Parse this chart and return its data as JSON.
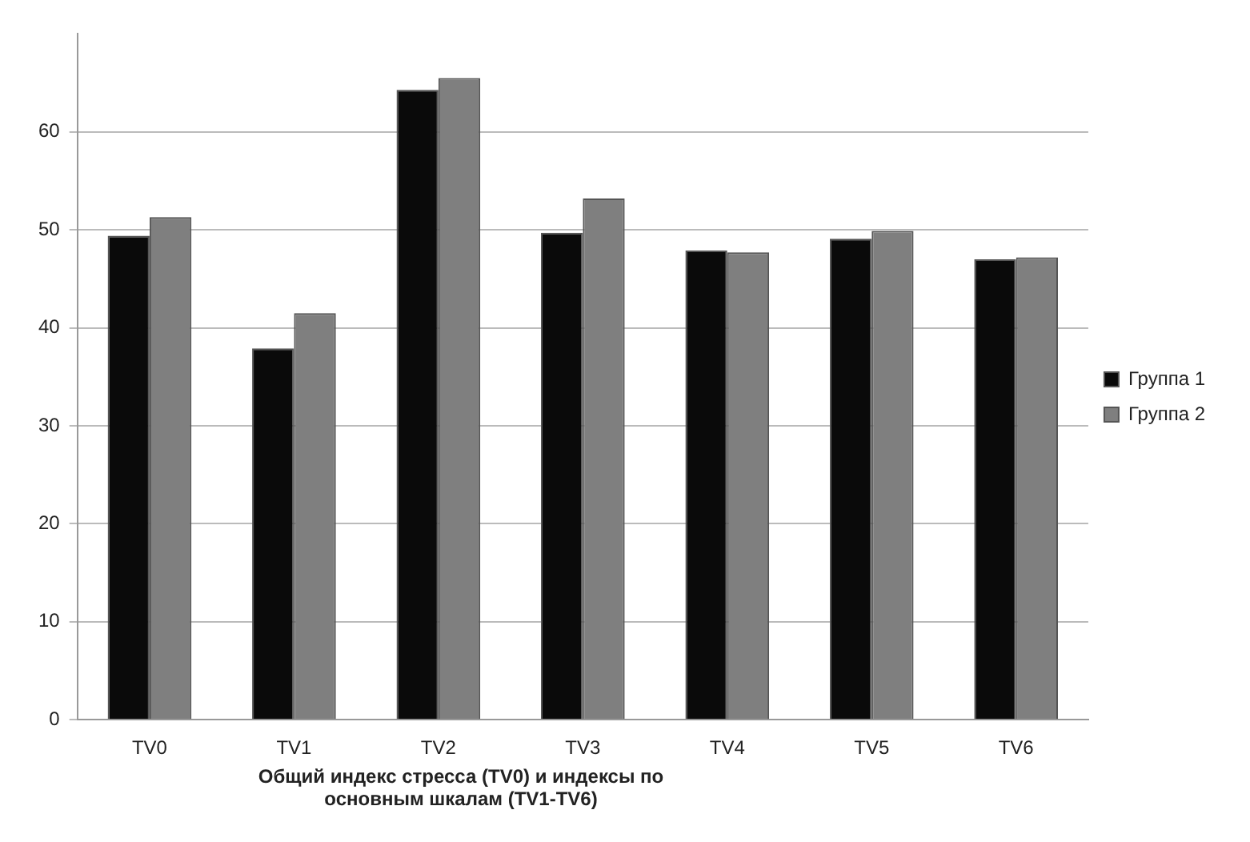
{
  "chart_data": {
    "type": "bar",
    "xlabel": "Общий индекс стресса (TV0) и индексы по основным  шкалам (TV1-TV6)",
    "categories": [
      "TV0",
      "TV1",
      "TV2",
      "TV3",
      "TV4",
      "TV5",
      "TV6"
    ],
    "series": [
      {
        "name": "Группа 1",
        "color": "#0a0a0a",
        "values": [
          49.4,
          37.9,
          64.3,
          49.7,
          47.9,
          49.1,
          47.0
        ]
      },
      {
        "name": "Группа 2",
        "color": "#7f7f7f",
        "values": [
          51.3,
          41.5,
          65.5,
          53.2,
          47.7,
          49.9,
          47.2
        ]
      }
    ],
    "ylim": [
      0,
      70
    ],
    "yticks": [
      0,
      10,
      20,
      30,
      40,
      50,
      60
    ],
    "grid": "y",
    "legend": "right"
  }
}
